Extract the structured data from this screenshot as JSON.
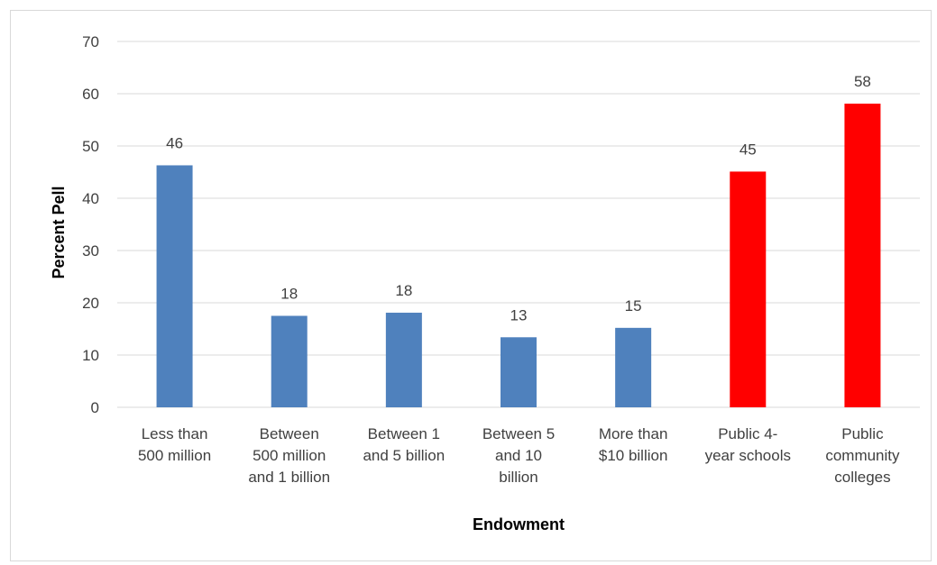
{
  "chart_data": {
    "type": "bar",
    "xlabel": "Endowment",
    "ylabel": "Percent Pell",
    "ylim": [
      0,
      70
    ],
    "yticks": [
      0,
      10,
      20,
      30,
      40,
      50,
      60,
      70
    ],
    "grid": true,
    "categories": [
      [
        "Less than",
        "500 million"
      ],
      [
        "Between",
        "500 million",
        "and 1 billion"
      ],
      [
        "Between 1",
        "and 5 billion"
      ],
      [
        "Between 5",
        "and 10",
        "billion"
      ],
      [
        "More than",
        "$10 billion"
      ],
      [
        "Public 4-",
        "year schools"
      ],
      [
        "Public",
        "community",
        "colleges"
      ]
    ],
    "values": [
      46.3,
      17.5,
      18.1,
      13.4,
      15.2,
      45.1,
      58.1
    ],
    "data_labels": [
      "46",
      "18",
      "18",
      "13",
      "15",
      "45",
      "58"
    ],
    "bar_colors": [
      "#4f81bd",
      "#4f81bd",
      "#4f81bd",
      "#4f81bd",
      "#4f81bd",
      "#ff0000",
      "#ff0000"
    ],
    "gridline_color": "#d9d9d9"
  }
}
